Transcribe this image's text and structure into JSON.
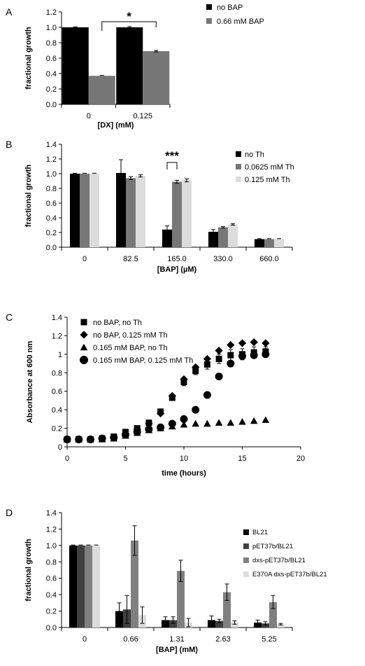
{
  "chart_data": [
    {
      "panel": "A",
      "type": "bar",
      "categories": [
        "0",
        "0.125"
      ],
      "series": [
        {
          "name": "no BAP",
          "color": "#000000",
          "values": [
            1.0,
            1.0
          ],
          "errors": [
            0.0,
            0.01
          ]
        },
        {
          "name": "0.66 mM BAP",
          "color": "#777777",
          "values": [
            0.37,
            0.69
          ],
          "errors": [
            0.005,
            0.01
          ]
        }
      ],
      "ylabel": "fractional growth",
      "xlabel": "[DX] (mM)",
      "ylim": [
        0,
        1.2
      ],
      "yticks": [
        "0.0",
        "0.2",
        "0.4",
        "0.6",
        "0.8",
        "1.0",
        "1.2"
      ],
      "annotation": "*",
      "legend_position": "top-right",
      "grid": false
    },
    {
      "panel": "B",
      "type": "bar",
      "categories": [
        "0",
        "82.5",
        "165.0",
        "330.0",
        "660.0"
      ],
      "series": [
        {
          "name": "no Th",
          "color": "#000000",
          "values": [
            1.0,
            1.01,
            0.24,
            0.21,
            0.11
          ],
          "errors": [
            0.005,
            0.18,
            0.05,
            0.03,
            0.005
          ]
        },
        {
          "name": "0.0625 mM Th",
          "color": "#777777",
          "values": [
            1.0,
            0.94,
            0.89,
            0.27,
            0.11
          ],
          "errors": [
            0.005,
            0.02,
            0.02,
            0.01,
            0.005
          ]
        },
        {
          "name": "0.125 mM Th",
          "color": "#dcdcdc",
          "values": [
            1.0,
            0.97,
            0.91,
            0.31,
            0.11
          ],
          "errors": [
            0.005,
            0.015,
            0.02,
            0.01,
            0.005
          ]
        }
      ],
      "ylabel": "fractional growth",
      "xlabel": "[BAP] (µM)",
      "ylim": [
        0,
        1.4
      ],
      "yticks": [
        "0.0",
        "0.2",
        "0.4",
        "0.6",
        "0.8",
        "1.0",
        "1.2",
        "1.4"
      ],
      "annotation": "***",
      "legend_position": "top-right",
      "grid": false
    },
    {
      "panel": "C",
      "type": "scatter",
      "series": [
        {
          "name": "no BAP, no Th",
          "marker": "square",
          "x": [
            0,
            1,
            2,
            3,
            4,
            5,
            6,
            7,
            8,
            9,
            10,
            11,
            12,
            13,
            14,
            15,
            16,
            17
          ],
          "y": [
            0.08,
            0.08,
            0.08,
            0.09,
            0.11,
            0.16,
            0.2,
            0.26,
            0.38,
            0.53,
            0.7,
            0.82,
            0.89,
            0.95,
            0.99,
            1.0,
            1.02,
            1.03
          ],
          "errors": [
            0,
            0,
            0,
            0,
            0,
            0.01,
            0.01,
            0.02,
            0.02,
            0.03,
            0.04,
            0.04,
            0.05,
            0.05,
            0.06,
            0.06,
            0.06,
            0.05
          ]
        },
        {
          "name": "no BAP, 0.125 mM Th",
          "marker": "diamond",
          "x": [
            0,
            1,
            2,
            3,
            4,
            5,
            6,
            7,
            8,
            9,
            10,
            11,
            12,
            13,
            14,
            15,
            16,
            17
          ],
          "y": [
            0.08,
            0.08,
            0.08,
            0.09,
            0.1,
            0.14,
            0.19,
            0.25,
            0.36,
            0.55,
            0.73,
            0.86,
            0.95,
            1.04,
            1.1,
            1.12,
            1.13,
            1.12
          ],
          "errors": []
        },
        {
          "name": "0.165 mM BAP, no Th",
          "marker": "triangle",
          "x": [
            0,
            1,
            2,
            3,
            4,
            5,
            6,
            7,
            8,
            9,
            10,
            11,
            12,
            13,
            14,
            15,
            16,
            17
          ],
          "y": [
            0.08,
            0.08,
            0.08,
            0.08,
            0.09,
            0.12,
            0.15,
            0.18,
            0.2,
            0.22,
            0.24,
            0.25,
            0.25,
            0.26,
            0.26,
            0.27,
            0.28,
            0.29
          ],
          "errors": []
        },
        {
          "name": "0.165 mM BAP, 0.125 mM Th",
          "marker": "circle",
          "x": [
            0,
            1,
            2,
            3,
            4,
            5,
            6,
            7,
            8,
            9,
            10,
            11,
            12,
            13,
            14,
            15,
            16,
            17
          ],
          "y": [
            0.08,
            0.08,
            0.08,
            0.09,
            0.1,
            0.13,
            0.16,
            0.19,
            0.21,
            0.25,
            0.3,
            0.4,
            0.56,
            0.76,
            0.9,
            0.98,
            0.99,
            1.0
          ],
          "errors": []
        }
      ],
      "ylabel": "Absorbance at 600 nm",
      "xlabel": "time (hours)",
      "xlim": [
        0,
        20
      ],
      "ylim": [
        0,
        1.4
      ],
      "xticks": [
        "0",
        "5",
        "10",
        "15",
        "20"
      ],
      "yticks": [
        "0",
        "0.2",
        "0.4",
        "0.6",
        "0.8",
        "1",
        "1.2",
        "1.4"
      ],
      "legend_position": "top-left",
      "grid": false
    },
    {
      "panel": "D",
      "type": "bar",
      "categories": [
        "0",
        "0.66",
        "1.31",
        "2.63",
        "5.25"
      ],
      "series": [
        {
          "name": "BL21",
          "color": "#000000",
          "values": [
            1.0,
            0.2,
            0.09,
            0.09,
            0.06
          ],
          "errors": [
            0.005,
            0.1,
            0.04,
            0.05,
            0.03
          ]
        },
        {
          "name": "pET37b/BL21",
          "color": "#404040",
          "values": [
            1.0,
            0.22,
            0.09,
            0.08,
            0.05
          ],
          "errors": [
            0.005,
            0.17,
            0.04,
            0.02,
            0.02
          ]
        },
        {
          "name": "dxs-pET37b/BL21",
          "color": "#808080",
          "values": [
            1.0,
            1.06,
            0.69,
            0.43,
            0.31
          ],
          "errors": [
            0.005,
            0.18,
            0.13,
            0.1,
            0.08
          ]
        },
        {
          "name": "E370A dxs-pET37b/BL21",
          "color": "#dcdcdc",
          "values": [
            1.0,
            0.15,
            0.06,
            0.06,
            0.04
          ],
          "errors": [
            0.005,
            0.1,
            0.05,
            0.02,
            0.01
          ]
        }
      ],
      "ylabel": "fractional growth",
      "xlabel": "[BAP] (mM)",
      "ylim": [
        0,
        1.4
      ],
      "yticks": [
        "0.0",
        "0.2",
        "0.4",
        "0.6",
        "0.8",
        "1.0",
        "1.2",
        "1.4"
      ],
      "legend_position": "right",
      "grid": false
    }
  ]
}
